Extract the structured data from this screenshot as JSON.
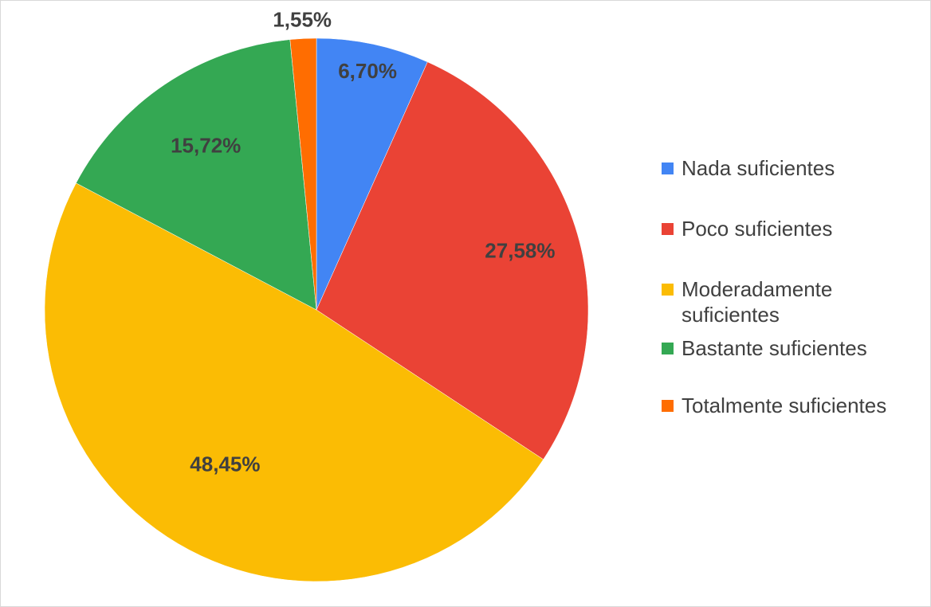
{
  "chart_data": {
    "type": "pie",
    "title": "",
    "start_angle_deg": 0,
    "direction": "clockwise",
    "legend_position": "right",
    "slices": [
      {
        "label": "Nada suficientes",
        "value": 6.7,
        "display": "6,70%",
        "color": "#4285f4"
      },
      {
        "label": "Poco suficientes",
        "value": 27.58,
        "display": "27,58%",
        "color": "#ea4335"
      },
      {
        "label": "Moderadamente suficientes",
        "value": 48.45,
        "display": "48,45%",
        "color": "#fbbc04"
      },
      {
        "label": "Bastante suficientes",
        "value": 15.72,
        "display": "15,72%",
        "color": "#34a853"
      },
      {
        "label": "Totalmente suficientes",
        "value": 1.55,
        "display": "1,55%",
        "color": "#ff6d01"
      }
    ]
  }
}
